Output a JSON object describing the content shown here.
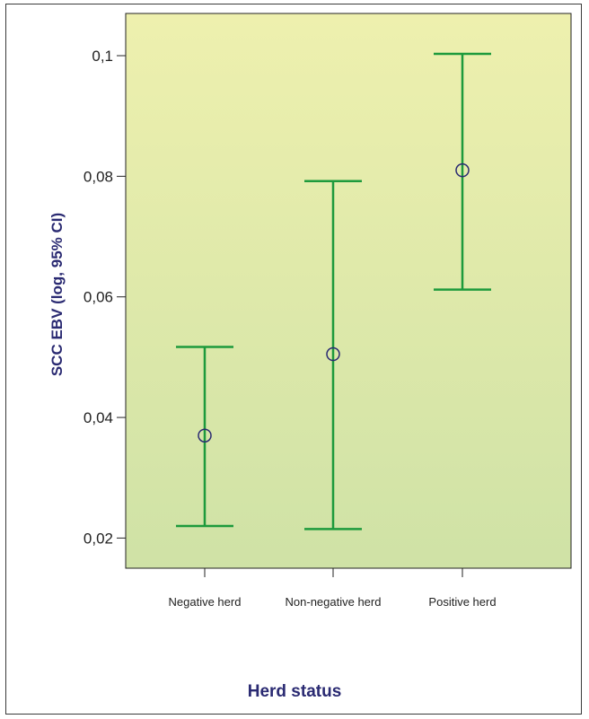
{
  "chart_data": {
    "type": "errorbar",
    "title": "",
    "xlabel": "Herd status",
    "ylabel": "SCC EBV (log, 95% CI)",
    "ylim": [
      0.015,
      0.107
    ],
    "yticks": [
      0.02,
      0.04,
      0.06,
      0.08,
      0.1
    ],
    "ytick_labels": [
      "0,02",
      "0,04",
      "0,06",
      "0,08",
      "0,1"
    ],
    "categories": [
      "Negative herd",
      "Non-negative herd",
      "Positive herd"
    ],
    "series": [
      {
        "mean": [
          0.037,
          0.0505,
          0.081
        ],
        "lower": [
          0.022,
          0.0215,
          0.0612
        ],
        "upper": [
          0.0517,
          0.0792,
          0.1003
        ]
      }
    ],
    "grid": false,
    "colors": {
      "errorbar": "#1d9a3c",
      "marker": "#2a2a72",
      "bg_top": "#eef0ae",
      "bg_bottom": "#cfe2a6",
      "axis": "#222222",
      "label": "#2a2a72"
    }
  }
}
